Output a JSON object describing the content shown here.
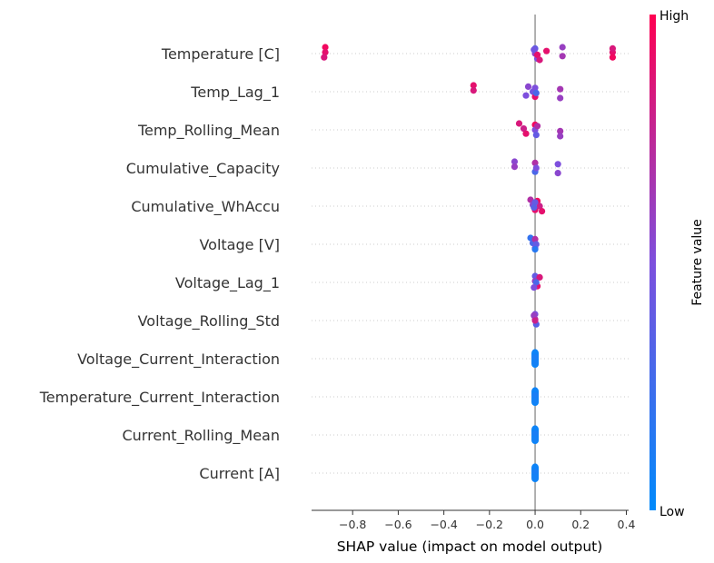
{
  "chart_data": {
    "type": "scatter",
    "subtype": "shap-beeswarm-summary",
    "xlabel": "SHAP value (impact on model output)",
    "ylabel": "",
    "xlim": [
      -0.98,
      0.41
    ],
    "xticks": [
      -0.8,
      -0.6,
      -0.4,
      -0.2,
      0.0,
      0.2,
      0.4
    ],
    "xtick_labels": [
      "−0.8",
      "−0.6",
      "−0.4",
      "−0.2",
      "0.0",
      "0.2",
      "0.4"
    ],
    "zero_line": true,
    "colorbar": {
      "label": "Feature value",
      "high_label": "High",
      "low_label": "Low",
      "low_color": "#008afb",
      "mid_color": "#7d4fdd",
      "high_color": "#ff0051"
    },
    "features": [
      {
        "name": "Temperature [C]",
        "points": [
          {
            "x": -0.92,
            "v": 0.95
          },
          {
            "x": -0.92,
            "v": 0.9
          },
          {
            "x": -0.925,
            "v": 0.85
          },
          {
            "x": 0.0,
            "v": 0.4
          },
          {
            "x": 0.0,
            "v": 0.6
          },
          {
            "x": 0.01,
            "v": 0.5
          },
          {
            "x": -0.005,
            "v": 0.45
          },
          {
            "x": 0.01,
            "v": 0.9
          },
          {
            "x": 0.02,
            "v": 0.85
          },
          {
            "x": 0.05,
            "v": 0.9
          },
          {
            "x": 0.12,
            "v": 0.65
          },
          {
            "x": 0.12,
            "v": 0.6
          },
          {
            "x": 0.34,
            "v": 0.9
          },
          {
            "x": 0.34,
            "v": 0.95
          },
          {
            "x": 0.34,
            "v": 0.85
          }
        ]
      },
      {
        "name": "Temp_Lag_1",
        "points": [
          {
            "x": -0.27,
            "v": 0.9
          },
          {
            "x": -0.27,
            "v": 0.85
          },
          {
            "x": -0.04,
            "v": 0.5
          },
          {
            "x": -0.03,
            "v": 0.55
          },
          {
            "x": -0.01,
            "v": 0.45
          },
          {
            "x": 0.0,
            "v": 0.9
          },
          {
            "x": 0.0,
            "v": 0.5
          },
          {
            "x": 0.005,
            "v": 0.3
          },
          {
            "x": 0.11,
            "v": 0.6
          },
          {
            "x": 0.11,
            "v": 0.65
          }
        ]
      },
      {
        "name": "Temp_Rolling_Mean",
        "points": [
          {
            "x": -0.07,
            "v": 0.85
          },
          {
            "x": -0.05,
            "v": 0.8
          },
          {
            "x": -0.04,
            "v": 0.9
          },
          {
            "x": 0.0,
            "v": 0.95
          },
          {
            "x": 0.0,
            "v": 0.5
          },
          {
            "x": 0.005,
            "v": 0.4
          },
          {
            "x": 0.01,
            "v": 0.7
          },
          {
            "x": 0.11,
            "v": 0.65
          },
          {
            "x": 0.11,
            "v": 0.6
          }
        ]
      },
      {
        "name": "Cumulative_Capacity",
        "points": [
          {
            "x": -0.09,
            "v": 0.55
          },
          {
            "x": -0.09,
            "v": 0.6
          },
          {
            "x": 0.0,
            "v": 0.3
          },
          {
            "x": 0.0,
            "v": 0.7
          },
          {
            "x": 0.005,
            "v": 0.5
          },
          {
            "x": 0.1,
            "v": 0.55
          },
          {
            "x": 0.1,
            "v": 0.5
          }
        ]
      },
      {
        "name": "Cumulative_WhAccu",
        "points": [
          {
            "x": -0.02,
            "v": 0.7
          },
          {
            "x": -0.01,
            "v": 0.55
          },
          {
            "x": 0.0,
            "v": 0.9
          },
          {
            "x": 0.01,
            "v": 0.95
          },
          {
            "x": 0.02,
            "v": 0.8
          },
          {
            "x": 0.03,
            "v": 0.9
          },
          {
            "x": 0.0,
            "v": 0.4
          },
          {
            "x": -0.005,
            "v": 0.35
          }
        ]
      },
      {
        "name": "Voltage [V]",
        "points": [
          {
            "x": -0.02,
            "v": 0.2
          },
          {
            "x": -0.01,
            "v": 0.3
          },
          {
            "x": 0.0,
            "v": 0.5
          },
          {
            "x": 0.0,
            "v": 0.7
          },
          {
            "x": 0.005,
            "v": 0.4
          },
          {
            "x": 0.0,
            "v": 0.15
          }
        ]
      },
      {
        "name": "Voltage_Lag_1",
        "points": [
          {
            "x": 0.0,
            "v": 0.4
          },
          {
            "x": 0.0,
            "v": 0.6
          },
          {
            "x": 0.01,
            "v": 0.9
          },
          {
            "x": 0.02,
            "v": 0.85
          },
          {
            "x": 0.005,
            "v": 0.3
          },
          {
            "x": -0.005,
            "v": 0.5
          }
        ]
      },
      {
        "name": "Voltage_Rolling_Std",
        "points": [
          {
            "x": 0.0,
            "v": 0.5
          },
          {
            "x": 0.0,
            "v": 0.7
          },
          {
            "x": 0.005,
            "v": 0.35
          },
          {
            "x": -0.005,
            "v": 0.6
          },
          {
            "x": 0.0,
            "v": 0.8
          }
        ]
      },
      {
        "name": "Voltage_Current_Interaction",
        "points": [
          {
            "x": 0.0,
            "v": 0.05
          },
          {
            "x": 0.0,
            "v": 0.1
          },
          {
            "x": 0.0,
            "v": 0.08
          }
        ]
      },
      {
        "name": "Temperature_Current_Interaction",
        "points": [
          {
            "x": 0.0,
            "v": 0.05
          },
          {
            "x": 0.0,
            "v": 0.1
          },
          {
            "x": 0.0,
            "v": 0.08
          }
        ]
      },
      {
        "name": "Current_Rolling_Mean",
        "points": [
          {
            "x": 0.0,
            "v": 0.05
          },
          {
            "x": 0.0,
            "v": 0.1
          },
          {
            "x": 0.0,
            "v": 0.08
          }
        ]
      },
      {
        "name": "Current [A]",
        "points": [
          {
            "x": 0.0,
            "v": 0.05
          },
          {
            "x": 0.0,
            "v": 0.1
          },
          {
            "x": 0.0,
            "v": 0.08
          }
        ]
      }
    ]
  }
}
